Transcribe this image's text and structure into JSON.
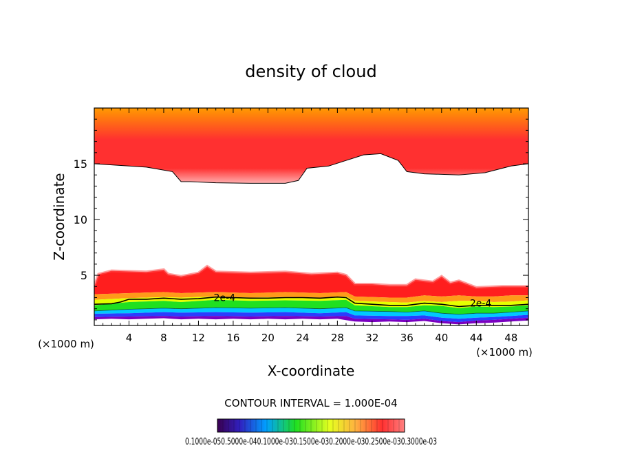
{
  "chart_data": {
    "type": "contour",
    "title": "density of cloud",
    "xlabel": "X-coordinate",
    "ylabel": "Z-coordinate",
    "x_unit_label": "(×1000 m)",
    "xlim": [
      0,
      50
    ],
    "ylim": [
      0.5,
      20
    ],
    "x_ticks": [
      4,
      8,
      12,
      16,
      20,
      24,
      28,
      32,
      36,
      40,
      44,
      48
    ],
    "y_ticks": [
      5,
      10,
      15
    ],
    "contour_interval_text": "CONTOUR INTERVAL = 1.000E-04",
    "contour_labels": [
      {
        "text": "2e-4",
        "x": 15,
        "z": 3.0
      },
      {
        "text": "2e-4",
        "x": 44.5,
        "z": 2.5
      }
    ],
    "colorbar_labels_text": "0.1000e-050.5000e-040.1000e-030.1500e-030.2000e-030.2500e-030.3000e-03",
    "colors": {
      "upper_top": "#ff9a00",
      "upper_core": "#ff3030",
      "upper_edge": "#ffb0b0",
      "low_top": "#ff5050",
      "low_red": "#ff1e1e",
      "low_orange": "#ff9a1a",
      "low_yellow": "#e6ff00",
      "low_green": "#20e020",
      "low_cyan": "#00c8ff",
      "low_blue": "#2a3cff",
      "low_purple": "#7a00c0"
    },
    "layers": [
      {
        "name": "upper_cloud_base",
        "points": [
          [
            0,
            15
          ],
          [
            2,
            14.9
          ],
          [
            6,
            14.7
          ],
          [
            9,
            14.3
          ],
          [
            10,
            13.4
          ],
          [
            11,
            13.4
          ],
          [
            14,
            13.3
          ],
          [
            18,
            13.25
          ],
          [
            22,
            13.25
          ],
          [
            23.5,
            13.5
          ],
          [
            24.5,
            14.6
          ],
          [
            27,
            14.8
          ],
          [
            29,
            15.3
          ],
          [
            31,
            15.8
          ],
          [
            33,
            15.9
          ],
          [
            35,
            15.3
          ],
          [
            36,
            14.3
          ],
          [
            38,
            14.1
          ],
          [
            42,
            14
          ],
          [
            45,
            14.2
          ],
          [
            48,
            14.8
          ],
          [
            50,
            15
          ]
        ]
      },
      {
        "name": "lower_cloud_top",
        "points": [
          [
            0,
            4
          ],
          [
            0.5,
            5.1
          ],
          [
            2,
            5.4
          ],
          [
            6,
            5.3
          ],
          [
            8,
            5.5
          ],
          [
            8.5,
            5.1
          ],
          [
            10,
            4.9
          ],
          [
            12,
            5.2
          ],
          [
            13,
            5.8
          ],
          [
            14,
            5.3
          ],
          [
            18,
            5.2
          ],
          [
            22,
            5.3
          ],
          [
            25,
            5.1
          ],
          [
            28,
            5.2
          ],
          [
            29,
            5.0
          ],
          [
            30,
            4.2
          ],
          [
            32,
            4.2
          ],
          [
            34,
            4.1
          ],
          [
            36,
            4.1
          ],
          [
            37,
            4.6
          ],
          [
            39,
            4.4
          ],
          [
            40,
            4.9
          ],
          [
            41,
            4.3
          ],
          [
            42,
            4.5
          ],
          [
            44,
            3.9
          ],
          [
            47,
            4.0
          ],
          [
            50,
            4.0
          ]
        ]
      },
      {
        "name": "red_orange",
        "points": [
          [
            0,
            3.3
          ],
          [
            4,
            3.4
          ],
          [
            8,
            3.5
          ],
          [
            10,
            3.4
          ],
          [
            14,
            3.5
          ],
          [
            18,
            3.4
          ],
          [
            22,
            3.5
          ],
          [
            26,
            3.4
          ],
          [
            29,
            3.5
          ],
          [
            30,
            3.1
          ],
          [
            34,
            3.0
          ],
          [
            36,
            3.0
          ],
          [
            38,
            3.2
          ],
          [
            40,
            3.1
          ],
          [
            42,
            3.2
          ],
          [
            44,
            3.1
          ],
          [
            46,
            3.1
          ],
          [
            48,
            3.2
          ],
          [
            50,
            3.2
          ]
        ]
      },
      {
        "name": "orange_yellow",
        "points": [
          [
            0,
            2.8
          ],
          [
            4,
            2.95
          ],
          [
            8,
            3.05
          ],
          [
            10,
            3.0
          ],
          [
            14,
            3.1
          ],
          [
            18,
            3.0
          ],
          [
            22,
            3.05
          ],
          [
            26,
            3.0
          ],
          [
            29,
            3.1
          ],
          [
            30,
            2.7
          ],
          [
            34,
            2.6
          ],
          [
            36,
            2.55
          ],
          [
            38,
            2.7
          ],
          [
            40,
            2.6
          ],
          [
            42,
            2.7
          ],
          [
            44,
            2.7
          ],
          [
            46,
            2.6
          ],
          [
            48,
            2.65
          ],
          [
            50,
            2.75
          ]
        ]
      },
      {
        "name": "contour_2e-4",
        "points": [
          [
            0,
            2.4
          ],
          [
            2,
            2.45
          ],
          [
            3,
            2.6
          ],
          [
            4,
            2.85
          ],
          [
            6,
            2.85
          ],
          [
            8,
            2.95
          ],
          [
            10,
            2.85
          ],
          [
            12,
            2.9
          ],
          [
            14,
            3.05
          ],
          [
            16,
            3.0
          ],
          [
            18,
            2.95
          ],
          [
            20,
            2.95
          ],
          [
            22,
            3.0
          ],
          [
            24,
            3.0
          ],
          [
            26,
            2.95
          ],
          [
            28,
            3.05
          ],
          [
            29,
            3.0
          ],
          [
            30,
            2.5
          ],
          [
            32,
            2.4
          ],
          [
            34,
            2.3
          ],
          [
            36,
            2.3
          ],
          [
            38,
            2.5
          ],
          [
            40,
            2.4
          ],
          [
            42,
            2.2
          ],
          [
            44,
            2.3
          ],
          [
            46,
            2.3
          ],
          [
            48,
            2.3
          ],
          [
            50,
            2.4
          ]
        ]
      },
      {
        "name": "yellow_green",
        "points": [
          [
            0,
            2.3
          ],
          [
            4,
            2.6
          ],
          [
            8,
            2.7
          ],
          [
            10,
            2.6
          ],
          [
            14,
            2.8
          ],
          [
            18,
            2.7
          ],
          [
            22,
            2.75
          ],
          [
            26,
            2.7
          ],
          [
            29,
            2.8
          ],
          [
            30,
            2.3
          ],
          [
            34,
            2.15
          ],
          [
            36,
            2.15
          ],
          [
            38,
            2.3
          ],
          [
            40,
            2.25
          ],
          [
            42,
            2.05
          ],
          [
            44,
            2.2
          ],
          [
            46,
            2.15
          ],
          [
            48,
            2.2
          ],
          [
            50,
            2.3
          ]
        ]
      },
      {
        "name": "green_cyan",
        "points": [
          [
            0,
            1.8
          ],
          [
            4,
            1.95
          ],
          [
            8,
            2.05
          ],
          [
            10,
            2.0
          ],
          [
            14,
            2.1
          ],
          [
            18,
            2.05
          ],
          [
            22,
            2.1
          ],
          [
            26,
            2.0
          ],
          [
            29,
            2.1
          ],
          [
            30,
            1.8
          ],
          [
            34,
            1.75
          ],
          [
            36,
            1.7
          ],
          [
            38,
            1.8
          ],
          [
            40,
            1.6
          ],
          [
            42,
            1.5
          ],
          [
            44,
            1.6
          ],
          [
            46,
            1.6
          ],
          [
            48,
            1.7
          ],
          [
            50,
            1.8
          ]
        ]
      },
      {
        "name": "cyan_blue",
        "points": [
          [
            0,
            1.55
          ],
          [
            4,
            1.6
          ],
          [
            8,
            1.7
          ],
          [
            10,
            1.65
          ],
          [
            14,
            1.7
          ],
          [
            18,
            1.65
          ],
          [
            22,
            1.7
          ],
          [
            26,
            1.6
          ],
          [
            29,
            1.7
          ],
          [
            30,
            1.4
          ],
          [
            34,
            1.35
          ],
          [
            36,
            1.35
          ],
          [
            38,
            1.4
          ],
          [
            40,
            1.2
          ],
          [
            42,
            1.1
          ],
          [
            44,
            1.2
          ],
          [
            46,
            1.25
          ],
          [
            48,
            1.35
          ],
          [
            50,
            1.45
          ]
        ]
      },
      {
        "name": "blue_purple",
        "points": [
          [
            0,
            1.25
          ],
          [
            4,
            1.3
          ],
          [
            8,
            1.35
          ],
          [
            10,
            1.3
          ],
          [
            14,
            1.35
          ],
          [
            18,
            1.3
          ],
          [
            22,
            1.35
          ],
          [
            26,
            1.3
          ],
          [
            29,
            1.35
          ],
          [
            30,
            1.1
          ],
          [
            34,
            1.05
          ],
          [
            36,
            1.0
          ],
          [
            38,
            1.1
          ],
          [
            40,
            0.9
          ],
          [
            42,
            0.8
          ],
          [
            44,
            0.95
          ],
          [
            46,
            1.0
          ],
          [
            48,
            1.1
          ],
          [
            50,
            1.2
          ]
        ]
      },
      {
        "name": "lower_cloud_base",
        "points": [
          [
            0,
            1.05
          ],
          [
            2,
            1.1
          ],
          [
            4,
            1.05
          ],
          [
            6,
            1.1
          ],
          [
            8,
            1.15
          ],
          [
            10,
            1.05
          ],
          [
            12,
            1.1
          ],
          [
            14,
            1.05
          ],
          [
            16,
            1.1
          ],
          [
            18,
            1.05
          ],
          [
            20,
            1.1
          ],
          [
            22,
            1.05
          ],
          [
            24,
            1.1
          ],
          [
            26,
            1.05
          ],
          [
            28,
            1.1
          ],
          [
            30,
            0.85
          ],
          [
            32,
            0.8
          ],
          [
            34,
            0.85
          ],
          [
            36,
            0.8
          ],
          [
            38,
            0.9
          ],
          [
            40,
            0.7
          ],
          [
            42,
            0.6
          ],
          [
            44,
            0.7
          ],
          [
            46,
            0.75
          ],
          [
            48,
            0.85
          ],
          [
            50,
            0.95
          ]
        ]
      }
    ]
  }
}
